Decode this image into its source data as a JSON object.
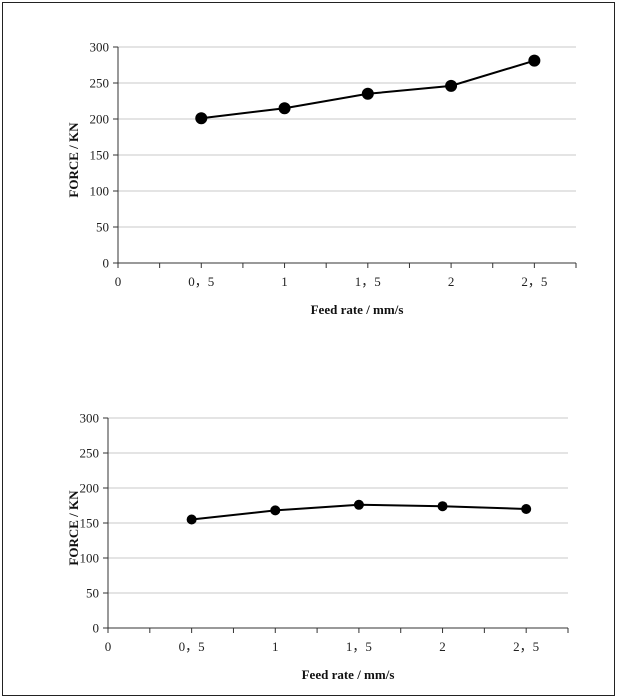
{
  "chart_data": [
    {
      "type": "line",
      "xlabel": "Feed rate / mm/s",
      "ylabel": "FORCE / KN",
      "x_tick_labels": [
        "0",
        "0，5",
        "1",
        "1，5",
        "2",
        "2，5"
      ],
      "x": [
        0.5,
        1,
        1.5,
        2,
        2.5
      ],
      "xlim": [
        0,
        2.75
      ],
      "ylim": [
        0,
        300
      ],
      "y_ticks": [
        0,
        50,
        100,
        150,
        200,
        250,
        300
      ],
      "grid": true,
      "series": [
        {
          "values": [
            201,
            215,
            235,
            246,
            281
          ],
          "color": "#000000"
        }
      ]
    },
    {
      "type": "line",
      "xlabel": "Feed rate / mm/s",
      "ylabel": "FORCE / KN",
      "x_tick_labels": [
        "0",
        "0，5",
        "1",
        "1，5",
        "2",
        "2，5"
      ],
      "x": [
        0.5,
        1,
        1.5,
        2,
        2.5
      ],
      "xlim": [
        0,
        2.75
      ],
      "ylim": [
        0,
        300
      ],
      "y_ticks": [
        0,
        50,
        100,
        150,
        200,
        250,
        300
      ],
      "grid": true,
      "series": [
        {
          "values": [
            155,
            168,
            176,
            174,
            170
          ],
          "color": "#000000"
        }
      ]
    }
  ]
}
